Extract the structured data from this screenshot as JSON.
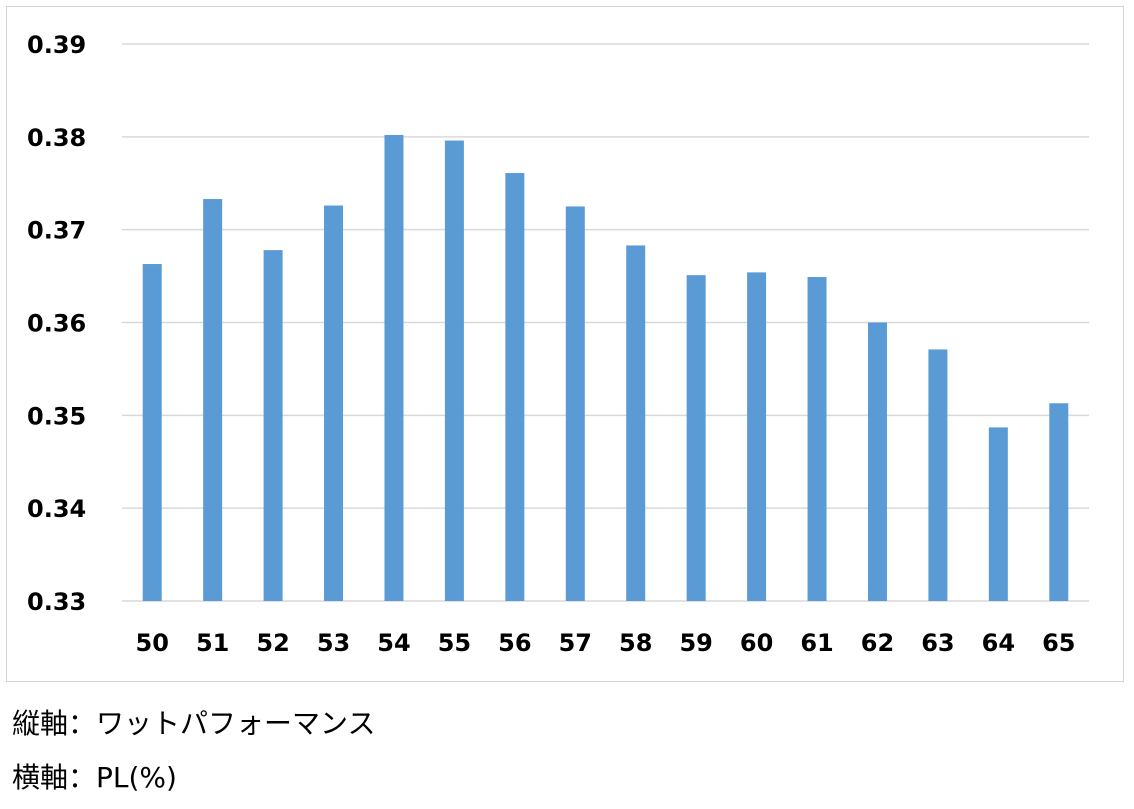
{
  "chart_data": {
    "type": "bar",
    "categories": [
      "50",
      "51",
      "52",
      "53",
      "54",
      "55",
      "56",
      "57",
      "58",
      "59",
      "60",
      "61",
      "62",
      "63",
      "64",
      "65"
    ],
    "values": [
      0.3663,
      0.3733,
      0.3678,
      0.3726,
      0.3802,
      0.3796,
      0.3761,
      0.3725,
      0.3683,
      0.3651,
      0.3654,
      0.3649,
      0.36,
      0.3571,
      0.3487,
      0.3513
    ],
    "ylim": [
      0.33,
      0.39
    ],
    "yticks": [
      "0.33",
      "0.34",
      "0.35",
      "0.36",
      "0.37",
      "0.38",
      "0.39"
    ],
    "grid": true,
    "bar_color": "#5b9bd5",
    "grid_color": "#d9d9d9"
  },
  "captions": {
    "y_axis": "縦軸：ワットパフォーマンス",
    "x_axis": "横軸：PL(%)"
  }
}
